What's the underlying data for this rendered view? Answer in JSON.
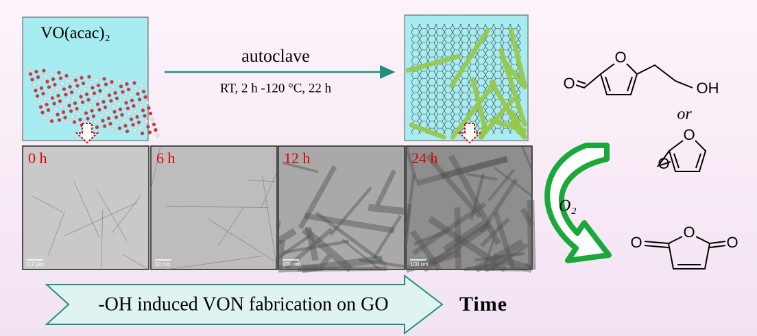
{
  "precursor": {
    "label": "VO(acac)₂"
  },
  "reaction": {
    "label": "autoclave",
    "conditions": "RT, 2 h -120 °C, 22 h"
  },
  "tem_panels": [
    {
      "time": "0 h",
      "scale": "0.2 μm"
    },
    {
      "time": "6 h",
      "scale": "50 nm"
    },
    {
      "time": "12 h",
      "scale": "100 nm"
    },
    {
      "time": "24 h",
      "scale": "100 nm"
    }
  ],
  "oxidant": "O₂",
  "connector": "or",
  "molecules": [
    {
      "atoms": [
        "O",
        "O",
        "OH"
      ]
    },
    {
      "atoms": [
        "O",
        "O"
      ]
    },
    {
      "atoms": [
        "O",
        "O",
        "O"
      ]
    }
  ],
  "footer": {
    "arrow_text": "-OH induced VON fabrication on GO",
    "axis": "Time"
  }
}
